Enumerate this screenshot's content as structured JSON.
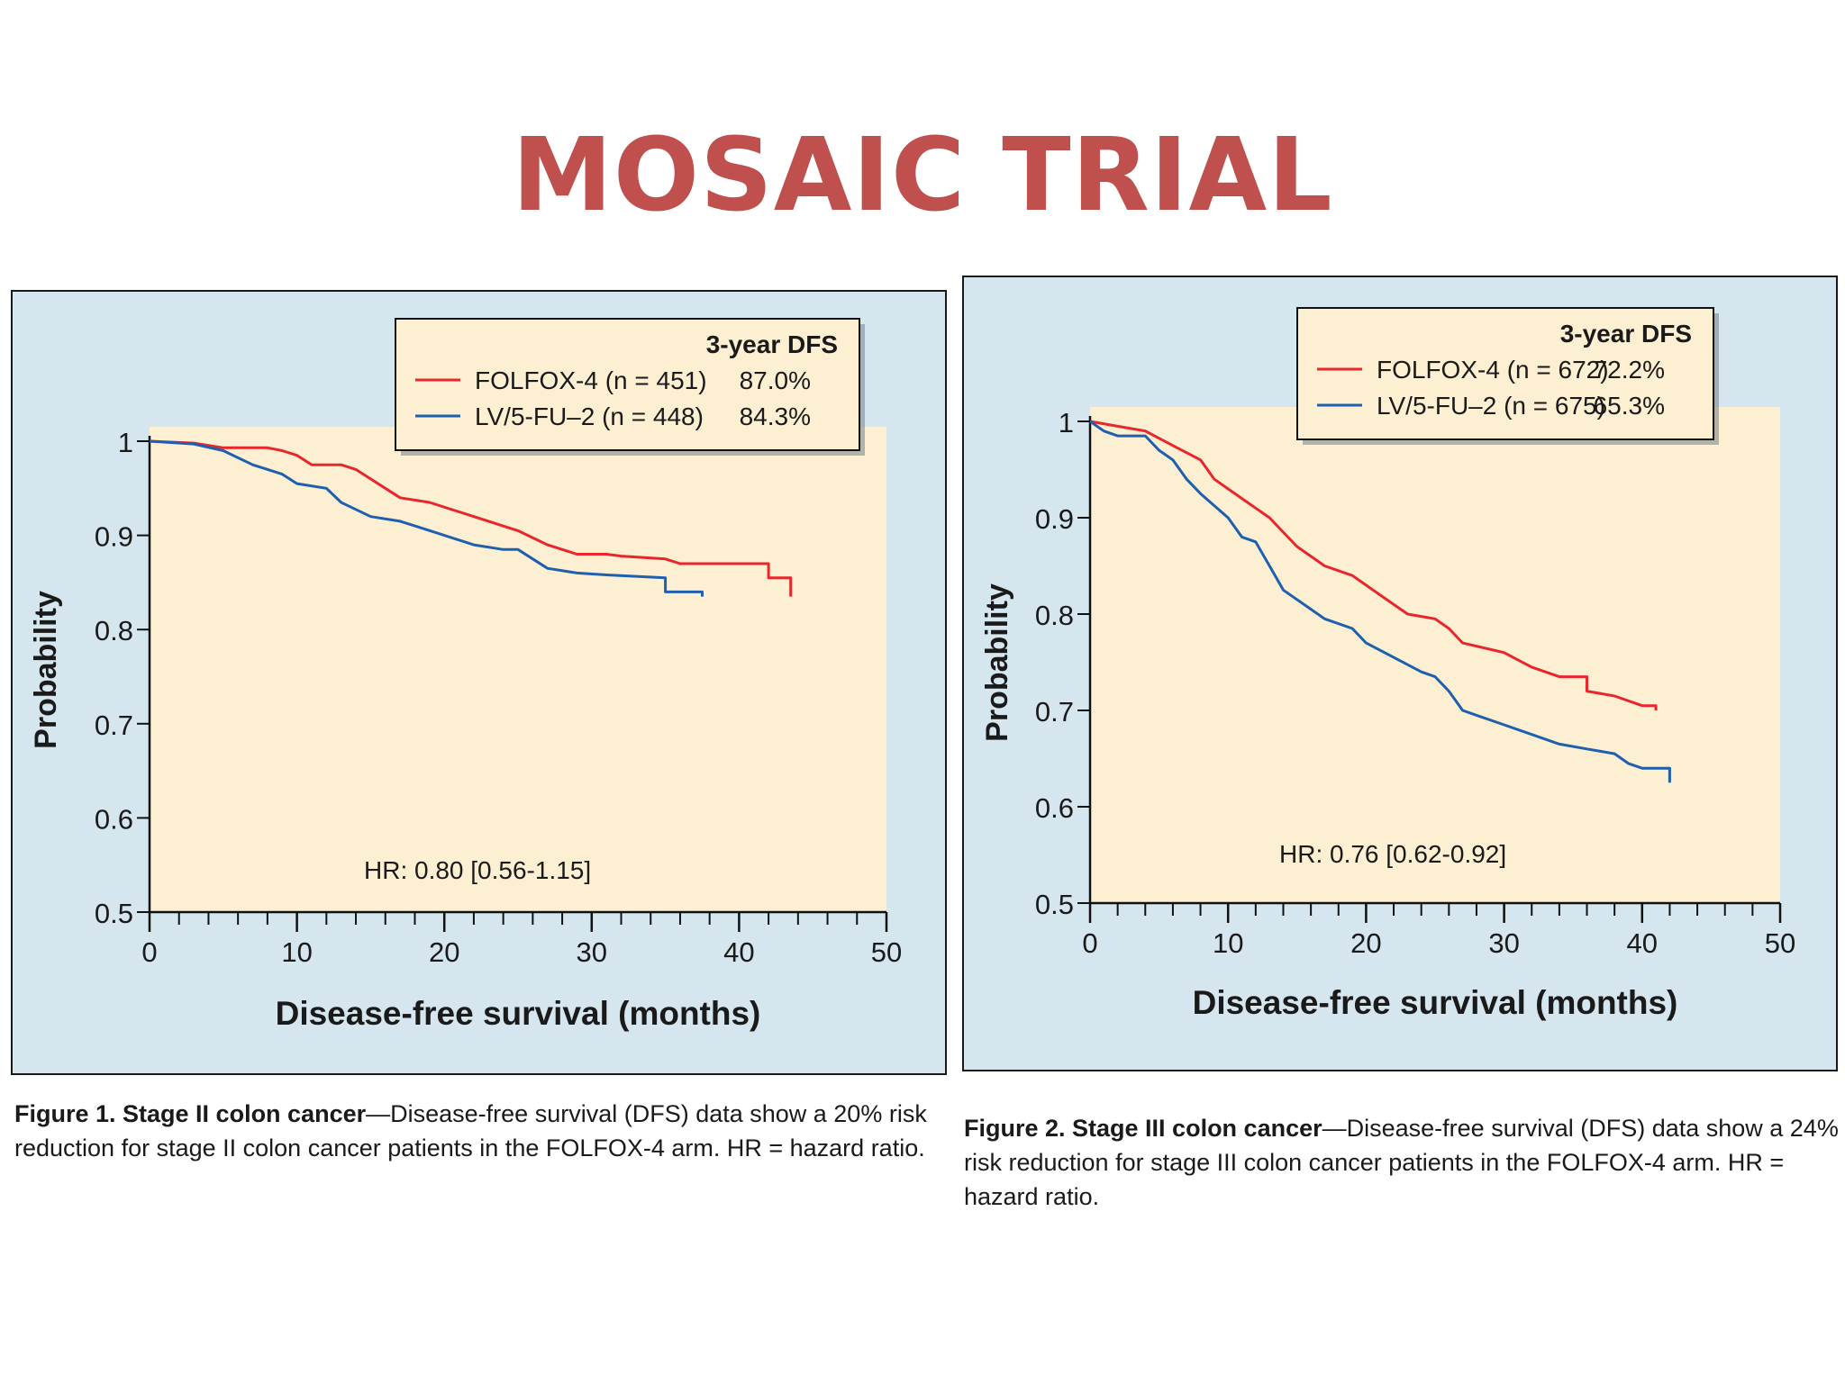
{
  "page": {
    "title": "MOSAIC TRIAL"
  },
  "figures": [
    {
      "caption_label": "Figure 1. Stage II colon cancer",
      "caption_text": "—Disease-free survival (DFS) data show a 20% risk reduction for stage II colon cancer patients in the FOLFOX-4 arm. HR = hazard ratio."
    },
    {
      "caption_label": "Figure 2. Stage III colon cancer",
      "caption_text": "—Disease-free survival (DFS) data show a 24% risk reduction for stage III colon cancer patients in the FOLFOX-4 arm. HR = hazard ratio."
    }
  ],
  "chart_data": [
    {
      "type": "line",
      "xlabel": "Disease-free survival (months)",
      "ylabel": "Probability",
      "xlim": [
        0,
        50
      ],
      "ylim": [
        0.5,
        1
      ],
      "xticks": [
        0,
        10,
        20,
        30,
        40,
        50
      ],
      "yticks": [
        0.5,
        0.6,
        0.7,
        0.8,
        0.9,
        1
      ],
      "ytick_labels": [
        "0.5",
        "0.6",
        "0.7",
        "0.8",
        "0.9",
        "1"
      ],
      "legend_header": "3-year DFS",
      "legend_position": "top-right",
      "annotation": "HR: 0.80 [0.56-1.15]",
      "series": [
        {
          "name": "FOLFOX-4 (n = 451)",
          "dfs": "87.0%",
          "color": "#e8262b",
          "points": [
            [
              0,
              1
            ],
            [
              3,
              0.998
            ],
            [
              5,
              0.993
            ],
            [
              8,
              0.993
            ],
            [
              9,
              0.99
            ],
            [
              10,
              0.985
            ],
            [
              11,
              0.975
            ],
            [
              13,
              0.975
            ],
            [
              14,
              0.97
            ],
            [
              17,
              0.94
            ],
            [
              19,
              0.935
            ],
            [
              22,
              0.92
            ],
            [
              25,
              0.905
            ],
            [
              27,
              0.89
            ],
            [
              28,
              0.885
            ],
            [
              29,
              0.88
            ],
            [
              31,
              0.88
            ],
            [
              32,
              0.878
            ],
            [
              35,
              0.875
            ],
            [
              36,
              0.87
            ],
            [
              42,
              0.87
            ],
            [
              42,
              0.855
            ],
            [
              43.5,
              0.855
            ],
            [
              43.5,
              0.835
            ]
          ]
        },
        {
          "name": "LV/5-FU–2 (n = 448)",
          "dfs": "84.3%",
          "color": "#1f5fb0",
          "points": [
            [
              0,
              1
            ],
            [
              3,
              0.997
            ],
            [
              5,
              0.99
            ],
            [
              7,
              0.975
            ],
            [
              9,
              0.965
            ],
            [
              10,
              0.955
            ],
            [
              12,
              0.95
            ],
            [
              13,
              0.935
            ],
            [
              15,
              0.92
            ],
            [
              17,
              0.915
            ],
            [
              18,
              0.91
            ],
            [
              20,
              0.9
            ],
            [
              22,
              0.89
            ],
            [
              24,
              0.885
            ],
            [
              25,
              0.885
            ],
            [
              26,
              0.875
            ],
            [
              27,
              0.865
            ],
            [
              29,
              0.86
            ],
            [
              31,
              0.858
            ],
            [
              35,
              0.855
            ],
            [
              35,
              0.84
            ],
            [
              37.5,
              0.84
            ],
            [
              37.5,
              0.835
            ]
          ]
        }
      ]
    },
    {
      "type": "line",
      "xlabel": "Disease-free survival (months)",
      "ylabel": "Probability",
      "xlim": [
        0,
        50
      ],
      "ylim": [
        0.5,
        1
      ],
      "xticks": [
        0,
        10,
        20,
        30,
        40,
        50
      ],
      "yticks": [
        0.5,
        0.6,
        0.7,
        0.8,
        0.9,
        1
      ],
      "ytick_labels": [
        "0.5",
        "0.6",
        "0.7",
        "0.8",
        "0.9",
        "1"
      ],
      "legend_header": "3-year DFS",
      "legend_position": "top-right",
      "annotation": "HR: 0.76 [0.62-0.92]",
      "series": [
        {
          "name": "FOLFOX-4 (n = 672)",
          "dfs": "72.2%",
          "color": "#e8262b",
          "points": [
            [
              0,
              1
            ],
            [
              2,
              0.995
            ],
            [
              4,
              0.99
            ],
            [
              6,
              0.975
            ],
            [
              8,
              0.96
            ],
            [
              9,
              0.94
            ],
            [
              11,
              0.92
            ],
            [
              12,
              0.91
            ],
            [
              13,
              0.9
            ],
            [
              14,
              0.885
            ],
            [
              15,
              0.87
            ],
            [
              17,
              0.85
            ],
            [
              19,
              0.84
            ],
            [
              20,
              0.83
            ],
            [
              21,
              0.82
            ],
            [
              23,
              0.8
            ],
            [
              25,
              0.795
            ],
            [
              26,
              0.785
            ],
            [
              27,
              0.77
            ],
            [
              30,
              0.76
            ],
            [
              32,
              0.745
            ],
            [
              34,
              0.735
            ],
            [
              36,
              0.735
            ],
            [
              36,
              0.72
            ],
            [
              38,
              0.715
            ],
            [
              40,
              0.705
            ],
            [
              41,
              0.705
            ],
            [
              41,
              0.7
            ]
          ]
        },
        {
          "name": "LV/5-FU–2 (n = 675)",
          "dfs": "65.3%",
          "color": "#1f5fb0",
          "points": [
            [
              0,
              1
            ],
            [
              1,
              0.99
            ],
            [
              2,
              0.985
            ],
            [
              4,
              0.985
            ],
            [
              5,
              0.97
            ],
            [
              6,
              0.96
            ],
            [
              7,
              0.94
            ],
            [
              8,
              0.925
            ],
            [
              10,
              0.9
            ],
            [
              11,
              0.88
            ],
            [
              12,
              0.875
            ],
            [
              13,
              0.85
            ],
            [
              14,
              0.825
            ],
            [
              16,
              0.805
            ],
            [
              17,
              0.795
            ],
            [
              19,
              0.785
            ],
            [
              20,
              0.77
            ],
            [
              22,
              0.755
            ],
            [
              24,
              0.74
            ],
            [
              25,
              0.735
            ],
            [
              26,
              0.72
            ],
            [
              27,
              0.7
            ],
            [
              28,
              0.695
            ],
            [
              30,
              0.685
            ],
            [
              32,
              0.675
            ],
            [
              34,
              0.665
            ],
            [
              36,
              0.66
            ],
            [
              38,
              0.655
            ],
            [
              39,
              0.645
            ],
            [
              40,
              0.64
            ],
            [
              42,
              0.64
            ],
            [
              42,
              0.625
            ]
          ]
        }
      ]
    }
  ]
}
